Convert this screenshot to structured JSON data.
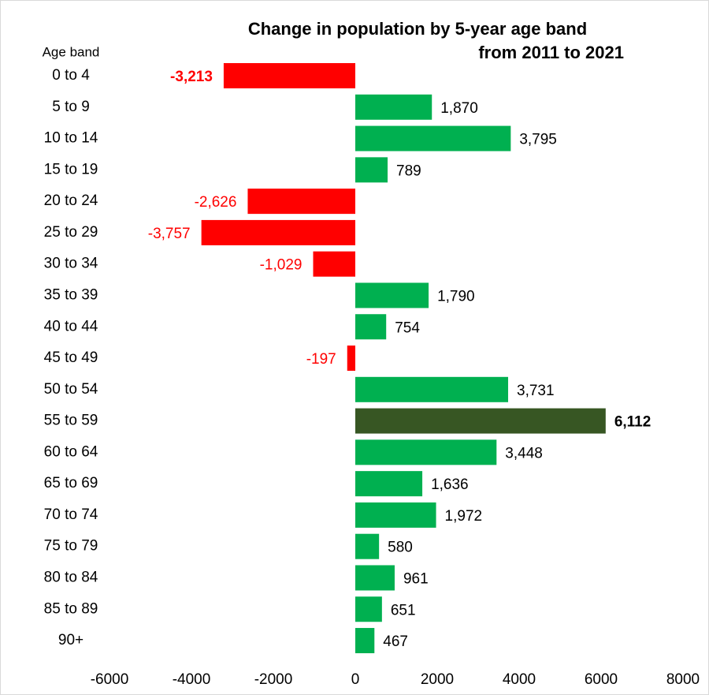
{
  "chart_data": {
    "type": "bar",
    "orientation": "horizontal",
    "title": [
      "Change in population by 5-year age band",
      "from 2011 to 2021"
    ],
    "y_label": "Age band",
    "categories": [
      "0 to 4",
      "5 to 9",
      "10 to 14",
      "15 to 19",
      "20 to 24",
      "25 to 29",
      "30 to 34",
      "35 to 39",
      "40 to 44",
      "45 to 49",
      "50 to 54",
      "55 to 59",
      "60 to 64",
      "65 to 69",
      "70 to 74",
      "75 to 79",
      "80 to 84",
      "85 to 89",
      "90+"
    ],
    "values": [
      -3213,
      1870,
      3795,
      789,
      -2626,
      -3757,
      -1029,
      1790,
      754,
      -197,
      3731,
      6112,
      3448,
      1636,
      1972,
      580,
      961,
      651,
      467
    ],
    "value_labels": [
      "-3,213",
      "1,870",
      "3,795",
      "789",
      "-2,626",
      "-3,757",
      "-1,029",
      "1,790",
      "754",
      "-197",
      "3,731",
      "6,112",
      "3,448",
      "1,636",
      "1,972",
      "580",
      "961",
      "651",
      "467"
    ],
    "colors": [
      "#ff0000",
      "#00b050",
      "#00b050",
      "#00b050",
      "#ff0000",
      "#ff0000",
      "#ff0000",
      "#00b050",
      "#00b050",
      "#ff0000",
      "#00b050",
      "#375623",
      "#00b050",
      "#00b050",
      "#00b050",
      "#00b050",
      "#00b050",
      "#00b050",
      "#00b050"
    ],
    "label_bold": [
      0,
      11
    ],
    "xlim": [
      -6000,
      8000
    ],
    "xticks": [
      -6000,
      -4000,
      -2000,
      0,
      2000,
      4000,
      6000,
      8000
    ],
    "grid": false
  }
}
